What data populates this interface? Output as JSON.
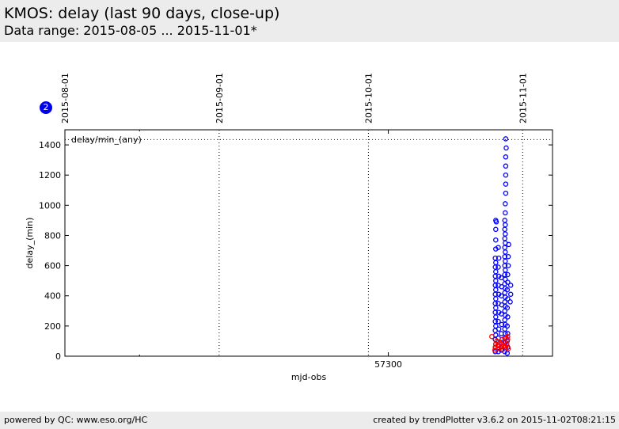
{
  "header": {
    "title": "KMOS: delay (last 90 days, close-up)",
    "subtitle": "Data range: 2015-08-05 ... 2015-11-01*"
  },
  "badge": {
    "label": "2"
  },
  "footer": {
    "left": "powered by QC: www.eso.org/HC",
    "right": "created by trendPlotter v3.6.2 on 2015-11-02T08:21:15"
  },
  "colors": {
    "series_blue": "#0000ff",
    "series_red": "#ff0000",
    "header_bg": "#ececec",
    "badge": "#0000ee"
  },
  "chart_data": {
    "type": "scatter",
    "xlabel": "mjd-obs",
    "ylabel": "delay_(min)",
    "annotation": "delay/min_(any)",
    "xlim": [
      57235,
      57333
    ],
    "ylim": [
      0,
      1500
    ],
    "xticks": [
      {
        "value": 57300,
        "label": "57300"
      }
    ],
    "minor_xticks": [
      57250,
      57350
    ],
    "yticks": [
      0,
      200,
      400,
      600,
      800,
      1000,
      1200,
      1400
    ],
    "date_markers": [
      {
        "value": 57235,
        "label": "2015-08-01"
      },
      {
        "value": 57266,
        "label": "2015-09-01"
      },
      {
        "value": 57296,
        "label": "2015-10-01"
      },
      {
        "value": 57327,
        "label": "2015-11-01"
      }
    ],
    "hline": 1435,
    "grid": false,
    "series": [
      {
        "color": "blue",
        "points": [
          [
            57321.5,
            30
          ],
          [
            57321.5,
            55
          ],
          [
            57321.6,
            80
          ],
          [
            57321.5,
            110
          ],
          [
            57321.6,
            140
          ],
          [
            57321.5,
            170
          ],
          [
            57321.6,
            200
          ],
          [
            57321.5,
            230
          ],
          [
            57321.6,
            260
          ],
          [
            57321.5,
            290
          ],
          [
            57321.6,
            320
          ],
          [
            57321.5,
            350
          ],
          [
            57321.6,
            380
          ],
          [
            57321.5,
            410
          ],
          [
            57321.6,
            440
          ],
          [
            57321.5,
            470
          ],
          [
            57321.6,
            500
          ],
          [
            57321.5,
            530
          ],
          [
            57321.6,
            560
          ],
          [
            57321.5,
            590
          ],
          [
            57321.6,
            620
          ],
          [
            57321.5,
            650
          ],
          [
            57321.6,
            710
          ],
          [
            57321.6,
            770
          ],
          [
            57321.6,
            840
          ],
          [
            57321.6,
            900
          ],
          [
            57321.7,
            890
          ],
          [
            57322.1,
            30
          ],
          [
            57322.2,
            70
          ],
          [
            57322.1,
            120
          ],
          [
            57322.2,
            180
          ],
          [
            57322.1,
            230
          ],
          [
            57322.2,
            290
          ],
          [
            57322.1,
            350
          ],
          [
            57322.2,
            410
          ],
          [
            57322.1,
            470
          ],
          [
            57322.2,
            530
          ],
          [
            57322.1,
            590
          ],
          [
            57322.2,
            650
          ],
          [
            57322.1,
            720
          ],
          [
            57322.7,
            40
          ],
          [
            57322.8,
            90
          ],
          [
            57322.7,
            150
          ],
          [
            57322.8,
            210
          ],
          [
            57322.7,
            280
          ],
          [
            57322.8,
            340
          ],
          [
            57322.7,
            400
          ],
          [
            57322.8,
            460
          ],
          [
            57322.7,
            520
          ],
          [
            57323.4,
            30
          ],
          [
            57323.4,
            60
          ],
          [
            57323.5,
            90
          ],
          [
            57323.4,
            120
          ],
          [
            57323.5,
            150
          ],
          [
            57323.4,
            180
          ],
          [
            57323.5,
            210
          ],
          [
            57323.4,
            240
          ],
          [
            57323.5,
            270
          ],
          [
            57323.4,
            300
          ],
          [
            57323.5,
            330
          ],
          [
            57323.4,
            360
          ],
          [
            57323.5,
            390
          ],
          [
            57323.4,
            420
          ],
          [
            57323.5,
            450
          ],
          [
            57323.4,
            480
          ],
          [
            57323.5,
            510
          ],
          [
            57323.4,
            540
          ],
          [
            57323.5,
            570
          ],
          [
            57323.4,
            600
          ],
          [
            57323.5,
            630
          ],
          [
            57323.4,
            660
          ],
          [
            57323.5,
            690
          ],
          [
            57323.4,
            720
          ],
          [
            57323.5,
            750
          ],
          [
            57323.4,
            780
          ],
          [
            57323.5,
            810
          ],
          [
            57323.4,
            840
          ],
          [
            57323.5,
            870
          ],
          [
            57323.4,
            900
          ],
          [
            57323.5,
            950
          ],
          [
            57323.5,
            1010
          ],
          [
            57323.6,
            1080
          ],
          [
            57323.6,
            1140
          ],
          [
            57323.6,
            1200
          ],
          [
            57323.6,
            1260
          ],
          [
            57323.6,
            1320
          ],
          [
            57323.7,
            1380
          ],
          [
            57323.6,
            1440
          ],
          [
            57323.9,
            20
          ],
          [
            57324.0,
            60
          ],
          [
            57323.9,
            100
          ],
          [
            57324.0,
            150
          ],
          [
            57323.9,
            200
          ],
          [
            57324.0,
            260
          ],
          [
            57323.9,
            320
          ],
          [
            57324.0,
            380
          ],
          [
            57323.9,
            440
          ],
          [
            57324.0,
            490
          ],
          [
            57324.0,
            540
          ],
          [
            57324.1,
            600
          ],
          [
            57324.1,
            660
          ],
          [
            57324.2,
            740
          ],
          [
            57324.5,
            360
          ],
          [
            57324.6,
            410
          ],
          [
            57324.6,
            470
          ]
        ]
      },
      {
        "color": "red",
        "points": [
          [
            57320.8,
            130
          ],
          [
            57321.4,
            40
          ],
          [
            57321.5,
            60
          ],
          [
            57321.6,
            80
          ],
          [
            57321.8,
            100
          ],
          [
            57322.0,
            70
          ],
          [
            57322.2,
            50
          ],
          [
            57322.4,
            90
          ],
          [
            57322.6,
            60
          ],
          [
            57322.8,
            80
          ],
          [
            57323.0,
            45
          ],
          [
            57323.2,
            70
          ],
          [
            57323.4,
            95
          ],
          [
            57323.6,
            60
          ],
          [
            57323.8,
            80
          ],
          [
            57324.0,
            110
          ],
          [
            57324.1,
            50
          ],
          [
            57324.0,
            130
          ],
          [
            57323.7,
            120
          ],
          [
            57322.9,
            110
          ]
        ]
      }
    ]
  }
}
